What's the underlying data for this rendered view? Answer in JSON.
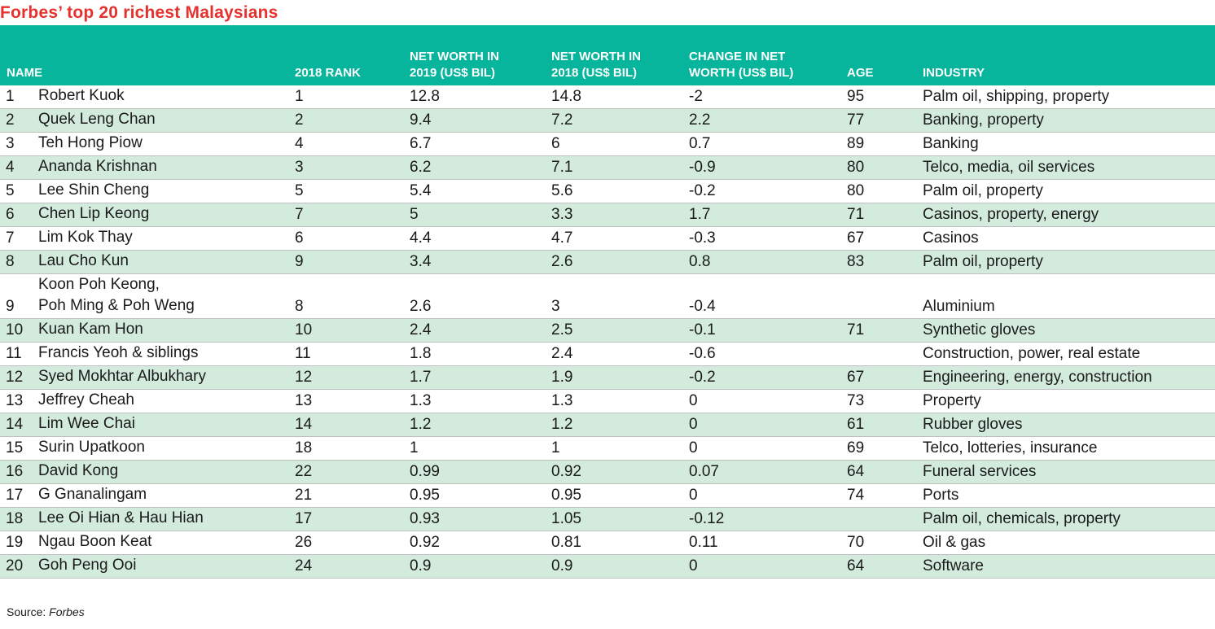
{
  "title": "Forbes’ top 20 richest Malaysians",
  "source_label": "Source:",
  "source_name": "Forbes",
  "chart_data": {
    "type": "table",
    "title": "Forbes’ top 20 richest Malaysians",
    "columns": [
      {
        "key": "name",
        "lines": [
          "NAME"
        ]
      },
      {
        "key": "rank_2018",
        "lines": [
          "2018 RANK"
        ]
      },
      {
        "key": "nw_2019",
        "lines": [
          "NET WORTH IN",
          "2019 (US$ BIL)"
        ]
      },
      {
        "key": "nw_2018",
        "lines": [
          "NET WORTH IN",
          "2018 (US$ BIL)"
        ]
      },
      {
        "key": "change",
        "lines": [
          "CHANGE IN NET",
          "WORTH (US$ BIL)"
        ]
      },
      {
        "key": "age",
        "lines": [
          "AGE"
        ]
      },
      {
        "key": "industry",
        "lines": [
          "INDUSTRY"
        ]
      }
    ],
    "rows": [
      {
        "idx": "1",
        "name": [
          "Robert Kuok"
        ],
        "rank_2018": "1",
        "nw_2019": "12.8",
        "nw_2018": "14.8",
        "change": "-2",
        "age": "95",
        "industry": "Palm oil, shipping, property"
      },
      {
        "idx": "2",
        "name": [
          "Quek Leng Chan"
        ],
        "rank_2018": "2",
        "nw_2019": "9.4",
        "nw_2018": "7.2",
        "change": "2.2",
        "age": "77",
        "industry": "Banking, property"
      },
      {
        "idx": "3",
        "name": [
          "Teh Hong Piow"
        ],
        "rank_2018": "4",
        "nw_2019": "6.7",
        "nw_2018": "6",
        "change": "0.7",
        "age": "89",
        "industry": "Banking"
      },
      {
        "idx": "4",
        "name": [
          "Ananda Krishnan"
        ],
        "rank_2018": "3",
        "nw_2019": "6.2",
        "nw_2018": "7.1",
        "change": "-0.9",
        "age": "80",
        "industry": "Telco, media, oil services"
      },
      {
        "idx": "5",
        "name": [
          "Lee Shin Cheng"
        ],
        "rank_2018": "5",
        "nw_2019": "5.4",
        "nw_2018": "5.6",
        "change": "-0.2",
        "age": "80",
        "industry": "Palm oil, property"
      },
      {
        "idx": "6",
        "name": [
          "Chen Lip Keong"
        ],
        "rank_2018": "7",
        "nw_2019": "5",
        "nw_2018": "3.3",
        "change": "1.7",
        "age": "71",
        "industry": "Casinos, property, energy"
      },
      {
        "idx": "7",
        "name": [
          "Lim Kok Thay"
        ],
        "rank_2018": "6",
        "nw_2019": "4.4",
        "nw_2018": "4.7",
        "change": "-0.3",
        "age": "67",
        "industry": "Casinos"
      },
      {
        "idx": "8",
        "name": [
          "Lau Cho Kun"
        ],
        "rank_2018": "9",
        "nw_2019": "3.4",
        "nw_2018": "2.6",
        "change": "0.8",
        "age": "83",
        "industry": "Palm oil, property"
      },
      {
        "idx": "9",
        "name": [
          "Koon Poh Keong,",
          "Poh Ming & Poh Weng"
        ],
        "rank_2018": "8",
        "nw_2019": "2.6",
        "nw_2018": "3",
        "change": "-0.4",
        "age": "",
        "industry": "Aluminium"
      },
      {
        "idx": "10",
        "name": [
          "Kuan Kam Hon"
        ],
        "rank_2018": "10",
        "nw_2019": "2.4",
        "nw_2018": "2.5",
        "change": "-0.1",
        "age": "71",
        "industry": "Synthetic gloves"
      },
      {
        "idx": "11",
        "name": [
          "Francis Yeoh & siblings"
        ],
        "rank_2018": "11",
        "nw_2019": "1.8",
        "nw_2018": "2.4",
        "change": "-0.6",
        "age": "",
        "industry": "Construction, power, real estate"
      },
      {
        "idx": "12",
        "name": [
          "Syed Mokhtar Albukhary"
        ],
        "rank_2018": "12",
        "nw_2019": "1.7",
        "nw_2018": "1.9",
        "change": "-0.2",
        "age": "67",
        "industry": "Engineering, energy, construction"
      },
      {
        "idx": "13",
        "name": [
          "Jeffrey Cheah"
        ],
        "rank_2018": "13",
        "nw_2019": "1.3",
        "nw_2018": "1.3",
        "change": "0",
        "age": "73",
        "industry": "Property"
      },
      {
        "idx": "14",
        "name": [
          "Lim Wee Chai"
        ],
        "rank_2018": "14",
        "nw_2019": "1.2",
        "nw_2018": "1.2",
        "change": "0",
        "age": "61",
        "industry": "Rubber gloves"
      },
      {
        "idx": "15",
        "name": [
          "Surin Upatkoon"
        ],
        "rank_2018": "18",
        "nw_2019": "1",
        "nw_2018": "1",
        "change": "0",
        "age": "69",
        "industry": "Telco, lotteries, insurance"
      },
      {
        "idx": "16",
        "name": [
          "David Kong"
        ],
        "rank_2018": "22",
        "nw_2019": "0.99",
        "nw_2018": "0.92",
        "change": "0.07",
        "age": "64",
        "industry": "Funeral services"
      },
      {
        "idx": "17",
        "name": [
          "G Gnanalingam"
        ],
        "rank_2018": "21",
        "nw_2019": "0.95",
        "nw_2018": "0.95",
        "change": "0",
        "age": "74",
        "industry": "Ports"
      },
      {
        "idx": "18",
        "name": [
          "Lee Oi Hian & Hau Hian"
        ],
        "rank_2018": "17",
        "nw_2019": "0.93",
        "nw_2018": "1.05",
        "change": "-0.12",
        "age": "",
        "industry": "Palm oil, chemicals, property"
      },
      {
        "idx": "19",
        "name": [
          "Ngau Boon Keat"
        ],
        "rank_2018": "26",
        "nw_2019": "0.92",
        "nw_2018": "0.81",
        "change": "0.11",
        "age": "70",
        "industry": "Oil & gas"
      },
      {
        "idx": "20",
        "name": [
          "Goh Peng Ooi"
        ],
        "rank_2018": "24",
        "nw_2019": "0.9",
        "nw_2018": "0.9",
        "change": "0",
        "age": "64",
        "industry": "Software"
      }
    ],
    "colors": {
      "title": "#e5322f",
      "header_background": "#07b59c",
      "header_text": "#ffffff",
      "alternate_row": "#d3ebdc",
      "row_divider": "#bfbfbf"
    }
  }
}
